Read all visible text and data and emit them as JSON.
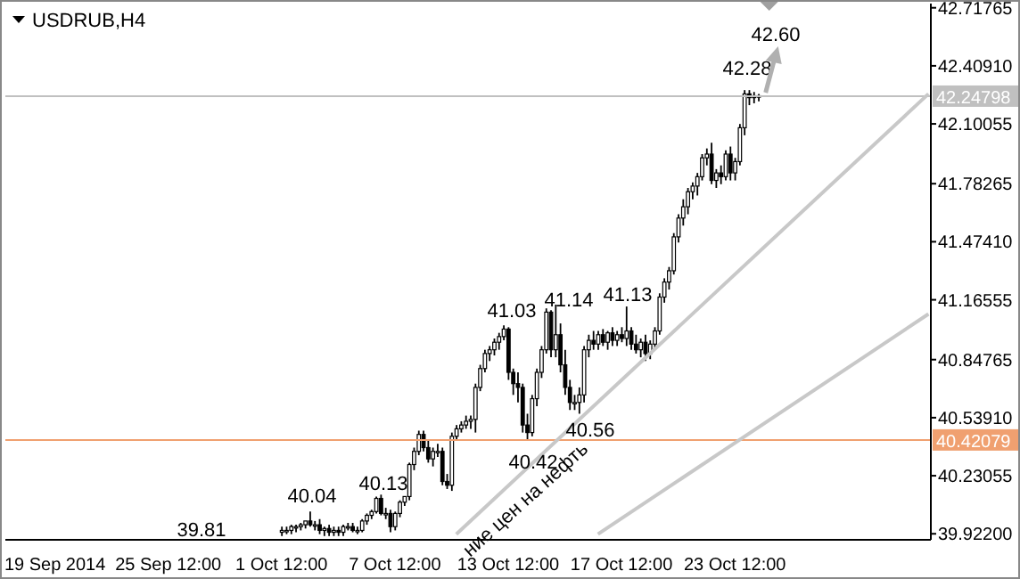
{
  "chart_data": {
    "type": "candlestick",
    "title": "USDRUB,H4",
    "categories": [
      null,
      null,
      null,
      null,
      null,
      null,
      null,
      null,
      null,
      null,
      "19 Sep 2014",
      null,
      null,
      null,
      null,
      null,
      null,
      null,
      null,
      null,
      null,
      null,
      null,
      null,
      null,
      null,
      null,
      null,
      null,
      null,
      null,
      null,
      null,
      null,
      "25 Sep 12:00",
      null,
      null,
      null,
      null,
      null,
      null,
      null,
      null,
      null,
      null,
      null,
      null,
      null,
      null,
      null,
      null,
      null,
      null,
      null,
      null,
      null,
      null,
      null,
      "1 Oct 12:00",
      null,
      null,
      null,
      null,
      null,
      null,
      null,
      null,
      null,
      null,
      null,
      null,
      null,
      null,
      null,
      null,
      null,
      null,
      null,
      null,
      null,
      null,
      null,
      "7 Oct 12:00",
      null,
      null,
      null,
      null,
      null,
      null,
      null,
      null,
      null,
      null,
      null,
      null,
      null,
      null,
      null,
      null,
      null,
      null,
      null,
      null,
      null,
      null,
      null,
      "13 Oct 12:00",
      null,
      null,
      null,
      null,
      null,
      null,
      null,
      null,
      null,
      null,
      null,
      null,
      null,
      null,
      null,
      null,
      null,
      null,
      null,
      null,
      null,
      null,
      null,
      "17 Oct 12:00",
      null,
      null,
      null,
      null,
      null,
      null,
      null,
      null,
      null,
      null,
      null,
      null,
      null,
      null,
      null,
      null,
      null,
      null,
      null,
      null,
      null,
      null,
      null,
      "23 Oct 12:00",
      null,
      null,
      null,
      null,
      null,
      null,
      null,
      null,
      null,
      null,
      null,
      null,
      null,
      null,
      null,
      null,
      null,
      null,
      null,
      null,
      null,
      null,
      null,
      null,
      null,
      null,
      null,
      null,
      null,
      null,
      null,
      null,
      null,
      null,
      null,
      null,
      null,
      null,
      null,
      null,
      null
    ],
    "ohlc": [
      null,
      null,
      null,
      null,
      null,
      null,
      null,
      null,
      null,
      null,
      null,
      null,
      null,
      null,
      null,
      null,
      null,
      null,
      null,
      null,
      null,
      null,
      null,
      null,
      null,
      null,
      null,
      null,
      null,
      null,
      null,
      null,
      null,
      null,
      null,
      null,
      null,
      null,
      null,
      null,
      null,
      null,
      null,
      null,
      null,
      null,
      null,
      null,
      null,
      null,
      null,
      null,
      null,
      null,
      null,
      null,
      null,
      null,
      [
        39.93,
        39.96,
        39.91,
        39.94
      ],
      [
        39.94,
        39.96,
        39.92,
        39.94
      ],
      [
        39.94,
        39.97,
        39.92,
        39.96
      ],
      [
        39.96,
        39.97,
        39.93,
        39.96
      ],
      [
        39.96,
        39.98,
        39.94,
        39.97
      ],
      [
        39.97,
        39.99,
        39.95,
        39.99
      ],
      [
        39.99,
        40.04,
        39.96,
        39.97
      ],
      [
        39.97,
        39.99,
        39.94,
        39.97
      ],
      [
        39.97,
        40.0,
        39.92,
        39.94
      ],
      [
        39.94,
        39.96,
        39.91,
        39.95
      ],
      [
        39.95,
        39.97,
        39.91,
        39.93
      ],
      [
        39.93,
        39.96,
        39.91,
        39.94
      ],
      [
        39.94,
        39.96,
        39.91,
        39.93
      ],
      [
        39.93,
        39.97,
        39.91,
        39.96
      ],
      [
        39.96,
        39.98,
        39.94,
        39.96
      ],
      [
        39.96,
        39.98,
        39.93,
        39.94
      ],
      [
        39.94,
        39.96,
        39.92,
        39.94
      ],
      [
        39.94,
        40.0,
        39.93,
        39.99
      ],
      [
        39.99,
        40.03,
        39.97,
        40.02
      ],
      [
        40.02,
        40.05,
        40.0,
        40.04
      ],
      [
        40.04,
        40.12,
        40.03,
        40.11
      ],
      [
        40.11,
        40.13,
        40.02,
        40.03
      ],
      [
        40.03,
        40.06,
        40.0,
        40.03
      ],
      [
        40.03,
        40.05,
        39.93,
        39.96
      ],
      [
        39.96,
        40.04,
        39.94,
        40.03
      ],
      [
        40.03,
        40.1,
        40.01,
        40.09
      ],
      [
        40.09,
        40.12,
        40.07,
        40.12
      ],
      [
        40.12,
        40.3,
        40.1,
        40.29
      ],
      [
        40.29,
        40.38,
        40.26,
        40.36
      ],
      [
        40.36,
        40.47,
        40.34,
        40.45
      ],
      [
        40.45,
        40.47,
        40.36,
        40.38
      ],
      [
        40.38,
        40.42,
        40.3,
        40.32
      ],
      [
        40.32,
        40.38,
        40.28,
        40.36
      ],
      [
        40.36,
        40.4,
        40.33,
        40.36
      ],
      [
        40.36,
        40.38,
        40.18,
        40.2
      ],
      [
        40.2,
        40.24,
        40.16,
        40.18
      ],
      [
        40.18,
        40.46,
        40.15,
        40.44
      ],
      [
        40.44,
        40.5,
        40.42,
        40.48
      ],
      [
        40.48,
        40.52,
        40.46,
        40.5
      ],
      [
        40.5,
        40.55,
        40.48,
        40.52
      ],
      [
        40.52,
        40.55,
        40.48,
        40.53
      ],
      [
        40.53,
        40.72,
        40.46,
        40.7
      ],
      [
        40.7,
        40.82,
        40.68,
        40.8
      ],
      [
        40.8,
        40.9,
        40.78,
        40.88
      ],
      [
        40.88,
        40.92,
        40.84,
        40.9
      ],
      [
        40.9,
        40.96,
        40.87,
        40.94
      ],
      [
        40.94,
        40.99,
        40.9,
        40.97
      ],
      [
        40.97,
        41.03,
        40.95,
        41.01
      ],
      [
        41.01,
        41.02,
        40.74,
        40.78
      ],
      [
        40.78,
        40.8,
        40.66,
        40.72
      ],
      [
        40.72,
        40.78,
        40.62,
        40.7
      ],
      [
        40.7,
        40.72,
        40.46,
        40.5
      ],
      [
        40.5,
        40.56,
        40.42,
        40.46
      ],
      [
        40.46,
        40.66,
        40.44,
        40.64
      ],
      [
        40.64,
        40.8,
        40.6,
        40.78
      ],
      [
        40.78,
        40.92,
        40.75,
        40.9
      ],
      [
        40.9,
        41.12,
        40.88,
        41.1
      ],
      [
        41.1,
        41.11,
        40.86,
        40.9
      ],
      [
        40.9,
        41.14,
        40.86,
        40.98
      ],
      [
        40.98,
        41.04,
        40.78,
        40.82
      ],
      [
        40.82,
        40.9,
        40.66,
        40.7
      ],
      [
        40.7,
        40.74,
        40.58,
        40.62
      ],
      [
        40.62,
        40.66,
        40.58,
        40.62
      ],
      [
        40.62,
        40.7,
        40.56,
        40.66
      ],
      [
        40.66,
        40.92,
        40.62,
        40.9
      ],
      [
        40.9,
        40.98,
        40.86,
        40.95
      ],
      [
        40.95,
        41.0,
        40.9,
        40.93
      ],
      [
        40.93,
        41.0,
        40.9,
        40.98
      ],
      [
        40.98,
        41.01,
        40.92,
        40.94
      ],
      [
        40.94,
        41.0,
        40.9,
        40.99
      ],
      [
        40.99,
        41.02,
        40.92,
        40.95
      ],
      [
        40.95,
        41.0,
        40.92,
        40.98
      ],
      [
        40.98,
        41.02,
        40.94,
        40.96
      ],
      [
        40.96,
        41.13,
        40.92,
        41.0
      ],
      [
        41.0,
        41.02,
        40.9,
        40.93
      ],
      [
        40.93,
        40.98,
        40.88,
        40.9
      ],
      [
        40.9,
        40.96,
        40.86,
        40.94
      ],
      [
        40.94,
        40.98,
        40.84,
        40.88
      ],
      [
        40.88,
        40.95,
        40.85,
        40.93
      ],
      [
        40.93,
        41.02,
        40.9,
        41.0
      ],
      [
        41.0,
        41.2,
        40.98,
        41.18
      ],
      [
        41.18,
        41.28,
        41.15,
        41.26
      ],
      [
        41.26,
        41.34,
        41.22,
        41.32
      ],
      [
        41.32,
        41.52,
        41.3,
        41.5
      ],
      [
        41.5,
        41.62,
        41.47,
        41.6
      ],
      [
        41.6,
        41.7,
        41.56,
        41.66
      ],
      [
        41.66,
        41.76,
        41.62,
        41.74
      ],
      [
        41.74,
        41.79,
        41.7,
        41.77
      ],
      [
        41.77,
        41.84,
        41.72,
        41.82
      ],
      [
        41.82,
        41.94,
        41.8,
        41.92
      ],
      [
        41.92,
        41.97,
        41.88,
        41.94
      ],
      [
        41.94,
        42.0,
        41.78,
        41.8
      ],
      [
        41.8,
        41.86,
        41.76,
        41.84
      ],
      [
        41.84,
        41.88,
        41.78,
        41.82
      ],
      [
        41.82,
        41.96,
        41.8,
        41.94
      ],
      [
        41.94,
        41.98,
        41.8,
        41.84
      ],
      [
        41.84,
        41.92,
        41.8,
        41.9
      ],
      [
        41.9,
        42.1,
        41.88,
        42.08
      ],
      [
        42.08,
        42.28,
        42.04,
        42.26
      ],
      [
        42.26,
        42.28,
        42.2,
        42.24
      ],
      [
        42.24,
        42.27,
        42.21,
        42.25
      ],
      [
        42.25,
        42.26,
        42.22,
        42.25
      ],
      null,
      null,
      null,
      null,
      null,
      null,
      null,
      null,
      null,
      null,
      null,
      null,
      null,
      null,
      null,
      null,
      null,
      null,
      null,
      null,
      null,
      null,
      null,
      null,
      null,
      null,
      null,
      null,
      null,
      null,
      null,
      null,
      null,
      null,
      null,
      null
    ],
    "series": [
      {
        "type": "line",
        "color": "#c8c8c8",
        "values": [
          null,
          null,
          null,
          null,
          null,
          null,
          null,
          null,
          null,
          null,
          null,
          null,
          null,
          null,
          null,
          null,
          null,
          null,
          null,
          null,
          null,
          null,
          null,
          null,
          null,
          null,
          null,
          null,
          null,
          null,
          null,
          null,
          null,
          null,
          null,
          null,
          null,
          null,
          null,
          null,
          null,
          null,
          null,
          null,
          null,
          null,
          null,
          null,
          null,
          null,
          null,
          null,
          null,
          null,
          null,
          null,
          null,
          null,
          null,
          null,
          null,
          null,
          null,
          null,
          null,
          null,
          null,
          null,
          null,
          null,
          null,
          null,
          null,
          null,
          null,
          null,
          null,
          null,
          null,
          null,
          null,
          null,
          null,
          null,
          null,
          null,
          null,
          null,
          null,
          null,
          null,
          null,
          null,
          null,
          null,
          39.92,
          null,
          null,
          null,
          null,
          null,
          null,
          null,
          null,
          null,
          null,
          null,
          null,
          null,
          null,
          null,
          null,
          null,
          null,
          null,
          null,
          null,
          null,
          null,
          null,
          null,
          null,
          null,
          null,
          null,
          null,
          null,
          null,
          null,
          null,
          null,
          null,
          null,
          null,
          null,
          null,
          null,
          null,
          null,
          null,
          null,
          null,
          null,
          null,
          null,
          null,
          null,
          null,
          null,
          null,
          null,
          null,
          null,
          null,
          null,
          null,
          null,
          null,
          null,
          null,
          null,
          null,
          null,
          null,
          null,
          null,
          null,
          null,
          null,
          null,
          null,
          null,
          null,
          null,
          null,
          null,
          null,
          null,
          null,
          null,
          null,
          null,
          null,
          null,
          null,
          null,
          null,
          null,
          null,
          null,
          null,
          null,
          null,
          null,
          null,
          42.26
        ]
      },
      {
        "type": "line",
        "color": "#c8c8c8",
        "values": [
          null,
          null,
          null,
          null,
          null,
          null,
          null,
          null,
          null,
          null,
          null,
          null,
          null,
          null,
          null,
          null,
          null,
          null,
          null,
          null,
          null,
          null,
          null,
          null,
          null,
          null,
          null,
          null,
          null,
          null,
          null,
          null,
          null,
          null,
          null,
          null,
          null,
          null,
          null,
          null,
          null,
          null,
          null,
          null,
          null,
          null,
          null,
          null,
          null,
          null,
          null,
          null,
          null,
          null,
          null,
          null,
          null,
          null,
          null,
          null,
          null,
          null,
          null,
          null,
          null,
          null,
          null,
          null,
          null,
          null,
          null,
          null,
          null,
          null,
          null,
          null,
          null,
          null,
          null,
          null,
          null,
          null,
          null,
          null,
          null,
          null,
          null,
          null,
          null,
          null,
          null,
          null,
          null,
          null,
          null,
          null,
          null,
          null,
          null,
          null,
          null,
          null,
          null,
          null,
          null,
          null,
          null,
          null,
          null,
          null,
          null,
          null,
          null,
          null,
          null,
          null,
          null,
          null,
          null,
          null,
          null,
          null,
          null,
          null,
          null,
          39.92,
          null,
          null,
          null,
          null,
          null,
          null,
          null,
          null,
          null,
          null,
          null,
          null,
          null,
          null,
          null,
          null,
          null,
          null,
          null,
          null,
          null,
          null,
          null,
          null,
          null,
          null,
          null,
          null,
          null,
          null,
          null,
          null,
          null,
          null,
          null,
          null,
          null,
          null,
          null,
          null,
          null,
          null,
          null,
          null,
          null,
          null,
          null,
          null,
          null,
          null,
          null,
          null,
          null,
          null,
          null,
          null,
          null,
          null,
          null,
          null,
          null,
          null,
          null,
          null,
          null,
          null,
          null,
          null,
          null,
          41.09
        ]
      }
    ],
    "ylim": [
      39.89,
      42.74
    ],
    "yticks": [
      42.71765,
      {
        "value": 42.4091,
        "label": "42.40910"
      },
      42.10055,
      41.78265,
      {
        "value": 41.4741,
        "label": "41.47410"
      },
      41.16555,
      40.84765,
      {
        "value": 40.5391,
        "label": "40.53910"
      },
      40.23055,
      {
        "value": 39.922,
        "label": "39.92200"
      }
    ],
    "ref_lines": [
      {
        "axis": "y",
        "value": 42.24798,
        "label": "42.24798",
        "color": "#c0c0c0"
      },
      {
        "axis": "y",
        "value": 40.42079,
        "label": "40.42079",
        "color": "#f0a070"
      }
    ],
    "annotations": [
      "40.04",
      "40.13",
      "41.03",
      "41.14",
      "41.13",
      "40.42",
      "40.56",
      "42.28",
      "42.60",
      "39.81",
      "ние цен на нефть"
    ]
  }
}
